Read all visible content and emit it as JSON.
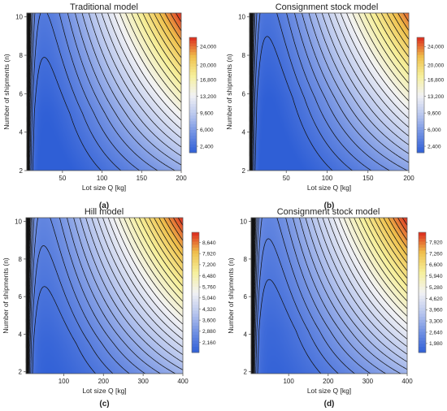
{
  "chart_data": [
    {
      "type": "heatmap",
      "subtype": "contour",
      "title": "Traditional model",
      "caption": "(a)",
      "xlabel": "Lot size Q [kg]",
      "ylabel": "Number of shipments (n)",
      "xlim": [
        5,
        200
      ],
      "ylim": [
        2,
        10.2
      ],
      "xticks": [
        50,
        100,
        150,
        200
      ],
      "yticks": [
        2,
        4,
        6,
        8,
        10
      ],
      "colorbar_ticks": [
        2400,
        6000,
        9600,
        13200,
        16800,
        20000,
        24000
      ],
      "colorbar_range": [
        1000,
        26000
      ],
      "z_max": 26000,
      "optimum": {
        "x": 22,
        "y": 5.0
      },
      "contour_count": 22,
      "colorscale": [
        "#2f5fd6",
        "#6f8fe2",
        "#b9c7ee",
        "#f2f2f4",
        "#f6f09c",
        "#efc04c",
        "#dc2a1e"
      ]
    },
    {
      "type": "heatmap",
      "subtype": "contour",
      "title": "Consignment stock model",
      "caption": "(b)",
      "xlabel": "Lot size Q [kg]",
      "ylabel": "Number of shipments (n)",
      "xlim": [
        5,
        200
      ],
      "ylim": [
        2,
        10.2
      ],
      "xticks": [
        50,
        100,
        150,
        200
      ],
      "yticks": [
        2,
        4,
        6,
        8,
        10
      ],
      "colorbar_ticks": [
        2400,
        6000,
        9600,
        13200,
        16800,
        20000,
        24000
      ],
      "colorbar_range": [
        1000,
        26000
      ],
      "z_max": 24500,
      "optimum": {
        "x": 20,
        "y": 5.8
      },
      "contour_count": 22,
      "colorscale": [
        "#2f5fd6",
        "#6f8fe2",
        "#b9c7ee",
        "#f2f2f4",
        "#f6f09c",
        "#efc04c",
        "#dc2a1e"
      ]
    },
    {
      "type": "heatmap",
      "subtype": "contour",
      "title": "Hill model",
      "caption": "(c)",
      "xlabel": "Lot size Q [kg]",
      "ylabel": "Number of shipments (n)",
      "xlim": [
        5,
        400
      ],
      "ylim": [
        1.9,
        10.2
      ],
      "xticks": [
        100,
        200,
        300,
        400
      ],
      "yticks": [
        2,
        4,
        6,
        8,
        10
      ],
      "colorbar_ticks": [
        2160,
        2880,
        3600,
        4320,
        5040,
        5760,
        6480,
        7200,
        7920,
        8640
      ],
      "colorbar_range": [
        1500,
        9300
      ],
      "z_max": 9300,
      "optimum": {
        "x": 35,
        "y": 3.5
      },
      "contour_count": 26,
      "colorscale": [
        "#2f5fd6",
        "#6f8fe2",
        "#b9c7ee",
        "#f2f2f4",
        "#f6f09c",
        "#efc04c",
        "#dc2a1e"
      ]
    },
    {
      "type": "heatmap",
      "subtype": "contour",
      "title": "Consignment stock model",
      "caption": "(d)",
      "xlabel": "Lot size Q [kg]",
      "ylabel": "Number of shipments (n)",
      "xlim": [
        5,
        400
      ],
      "ylim": [
        1.9,
        10.2
      ],
      "xticks": [
        100,
        200,
        300,
        400
      ],
      "yticks": [
        2,
        4,
        6,
        8,
        10
      ],
      "colorbar_ticks": [
        1980,
        2640,
        3300,
        3960,
        4620,
        5280,
        5940,
        6600,
        7260,
        7920
      ],
      "colorbar_range": [
        1450,
        8500
      ],
      "z_max": 8500,
      "optimum": {
        "x": 38,
        "y": 4.2
      },
      "contour_count": 26,
      "colorscale": [
        "#2f5fd6",
        "#6f8fe2",
        "#b9c7ee",
        "#f2f2f4",
        "#f6f09c",
        "#efc04c",
        "#dc2a1e"
      ]
    }
  ]
}
